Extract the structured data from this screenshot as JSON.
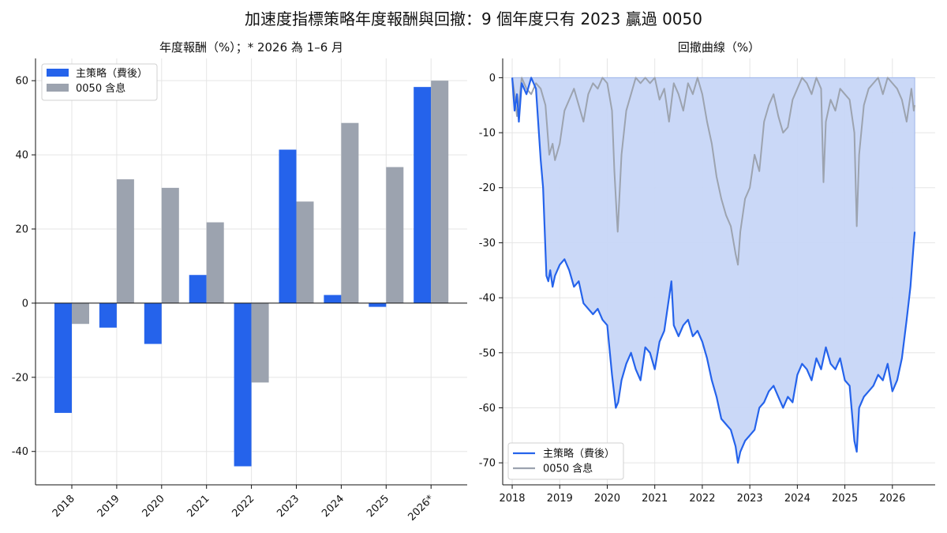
{
  "suptitle": "加速度指標策略年度報酬與回撤：9 個年度只有 2023 贏過 0050",
  "colors": {
    "strategy": "#2563eb",
    "benchmark": "#9ca3af",
    "fill": "#c7d6f7",
    "grid": "#e5e5e5"
  },
  "chart_data": [
    {
      "type": "bar",
      "title": "年度報酬（%）；* 2026 為 1–6 月",
      "categories": [
        "2018",
        "2019",
        "2020",
        "2021",
        "2022",
        "2023",
        "2024",
        "2025",
        "2026*"
      ],
      "series": [
        {
          "name": "主策略（費後）",
          "values": [
            -29.6,
            -6.6,
            -11.0,
            7.6,
            -44.0,
            41.4,
            2.2,
            -1.0,
            58.3
          ]
        },
        {
          "name": "0050 含息",
          "values": [
            -5.6,
            33.4,
            31.1,
            21.8,
            -21.4,
            27.4,
            48.6,
            36.7,
            60.0
          ]
        }
      ],
      "yticks": [
        -40,
        -20,
        0,
        20,
        40,
        60
      ],
      "ylim": [
        -49,
        66
      ],
      "grid": true,
      "legend": "top-left"
    },
    {
      "type": "line",
      "title": "回撤曲線（%）",
      "xticks": [
        "2018",
        "2019",
        "2020",
        "2021",
        "2022",
        "2023",
        "2024",
        "2025",
        "2026"
      ],
      "xlim": [
        2017.8,
        2026.9
      ],
      "ylim": [
        -74,
        3.5
      ],
      "yticks": [
        0,
        -10,
        -20,
        -30,
        -40,
        -50,
        -60,
        -70
      ],
      "grid": true,
      "legend": "bottom-left",
      "series": [
        {
          "name": "主策略（費後）",
          "x": [
            2018.0,
            2018.05,
            2018.1,
            2018.14,
            2018.2,
            2018.3,
            2018.4,
            2018.5,
            2018.6,
            2018.65,
            2018.72,
            2018.76,
            2018.8,
            2018.85,
            2018.9,
            2019.0,
            2019.1,
            2019.2,
            2019.3,
            2019.4,
            2019.5,
            2019.6,
            2019.7,
            2019.8,
            2019.9,
            2020.0,
            2020.1,
            2020.18,
            2020.23,
            2020.3,
            2020.4,
            2020.5,
            2020.6,
            2020.7,
            2020.8,
            2020.9,
            2021.0,
            2021.1,
            2021.2,
            2021.3,
            2021.35,
            2021.4,
            2021.5,
            2021.6,
            2021.7,
            2021.8,
            2021.9,
            2022.0,
            2022.1,
            2022.2,
            2022.3,
            2022.4,
            2022.5,
            2022.6,
            2022.7,
            2022.75,
            2022.8,
            2022.9,
            2023.0,
            2023.1,
            2023.2,
            2023.3,
            2023.4,
            2023.5,
            2023.6,
            2023.7,
            2023.8,
            2023.9,
            2024.0,
            2024.1,
            2024.2,
            2024.3,
            2024.4,
            2024.5,
            2024.6,
            2024.7,
            2024.8,
            2024.9,
            2025.0,
            2025.1,
            2025.2,
            2025.25,
            2025.3,
            2025.4,
            2025.5,
            2025.6,
            2025.7,
            2025.8,
            2025.9,
            2026.0,
            2026.1,
            2026.2,
            2026.3,
            2026.38,
            2026.45,
            2026.47
          ],
          "values": [
            0,
            -6,
            -3,
            -8,
            -1,
            -3,
            0,
            -2,
            -15,
            -20,
            -36,
            -37,
            -35,
            -38,
            -36,
            -34,
            -33,
            -35,
            -38,
            -37,
            -41,
            -42,
            -43,
            -42,
            -44,
            -45,
            -54,
            -60,
            -59,
            -55,
            -52,
            -50,
            -53,
            -55,
            -49,
            -50,
            -53,
            -48,
            -46,
            -40,
            -37,
            -45,
            -47,
            -45,
            -44,
            -47,
            -46,
            -48,
            -51,
            -55,
            -58,
            -62,
            -63,
            -64,
            -67,
            -70,
            -68,
            -66,
            -65,
            -64,
            -60,
            -59,
            -57,
            -56,
            -58,
            -60,
            -58,
            -59,
            -54,
            -52,
            -53,
            -55,
            -51,
            -53,
            -49,
            -52,
            -53,
            -51,
            -55,
            -56,
            -66,
            -68,
            -60,
            -58,
            -57,
            -56,
            -54,
            -55,
            -52,
            -57,
            -55,
            -51,
            -44,
            -38,
            -30,
            -28
          ]
        },
        {
          "name": "0050 含息",
          "x": [
            2018.0,
            2018.05,
            2018.1,
            2018.15,
            2018.2,
            2018.3,
            2018.4,
            2018.5,
            2018.6,
            2018.7,
            2018.78,
            2018.85,
            2018.9,
            2019.0,
            2019.1,
            2019.2,
            2019.3,
            2019.4,
            2019.5,
            2019.6,
            2019.7,
            2019.8,
            2019.9,
            2020.0,
            2020.1,
            2020.15,
            2020.2,
            2020.22,
            2020.3,
            2020.4,
            2020.5,
            2020.6,
            2020.7,
            2020.8,
            2020.9,
            2021.0,
            2021.1,
            2021.2,
            2021.3,
            2021.4,
            2021.5,
            2021.6,
            2021.7,
            2021.8,
            2021.9,
            2022.0,
            2022.1,
            2022.2,
            2022.3,
            2022.4,
            2022.5,
            2022.6,
            2022.7,
            2022.75,
            2022.8,
            2022.9,
            2023.0,
            2023.1,
            2023.2,
            2023.3,
            2023.4,
            2023.5,
            2023.6,
            2023.7,
            2023.8,
            2023.9,
            2024.0,
            2024.1,
            2024.2,
            2024.3,
            2024.4,
            2024.5,
            2024.55,
            2024.6,
            2024.7,
            2024.8,
            2024.9,
            2025.0,
            2025.1,
            2025.2,
            2025.25,
            2025.3,
            2025.4,
            2025.5,
            2025.6,
            2025.7,
            2025.8,
            2025.9,
            2026.0,
            2026.1,
            2026.2,
            2026.3,
            2026.4,
            2026.45,
            2026.47
          ],
          "values": [
            0,
            -3,
            -7,
            -4,
            0,
            -2,
            -3,
            -1,
            -2,
            -5,
            -14,
            -12,
            -15,
            -12,
            -6,
            -4,
            -2,
            -5,
            -8,
            -3,
            -1,
            -2,
            0,
            -1,
            -6,
            -17,
            -25,
            -28,
            -14,
            -6,
            -3,
            0,
            -1,
            0,
            -1,
            0,
            -4,
            -2,
            -8,
            -1,
            -3,
            -6,
            -1,
            -3,
            0,
            -3,
            -8,
            -12,
            -18,
            -22,
            -25,
            -27,
            -32,
            -34,
            -28,
            -22,
            -20,
            -14,
            -17,
            -8,
            -5,
            -3,
            -7,
            -10,
            -9,
            -4,
            -2,
            0,
            -1,
            -3,
            0,
            -2,
            -19,
            -8,
            -4,
            -6,
            -2,
            -3,
            -4,
            -10,
            -27,
            -14,
            -5,
            -2,
            -1,
            0,
            -3,
            0,
            -1,
            -2,
            -4,
            -8,
            -2,
            -6,
            -5
          ]
        }
      ]
    }
  ]
}
